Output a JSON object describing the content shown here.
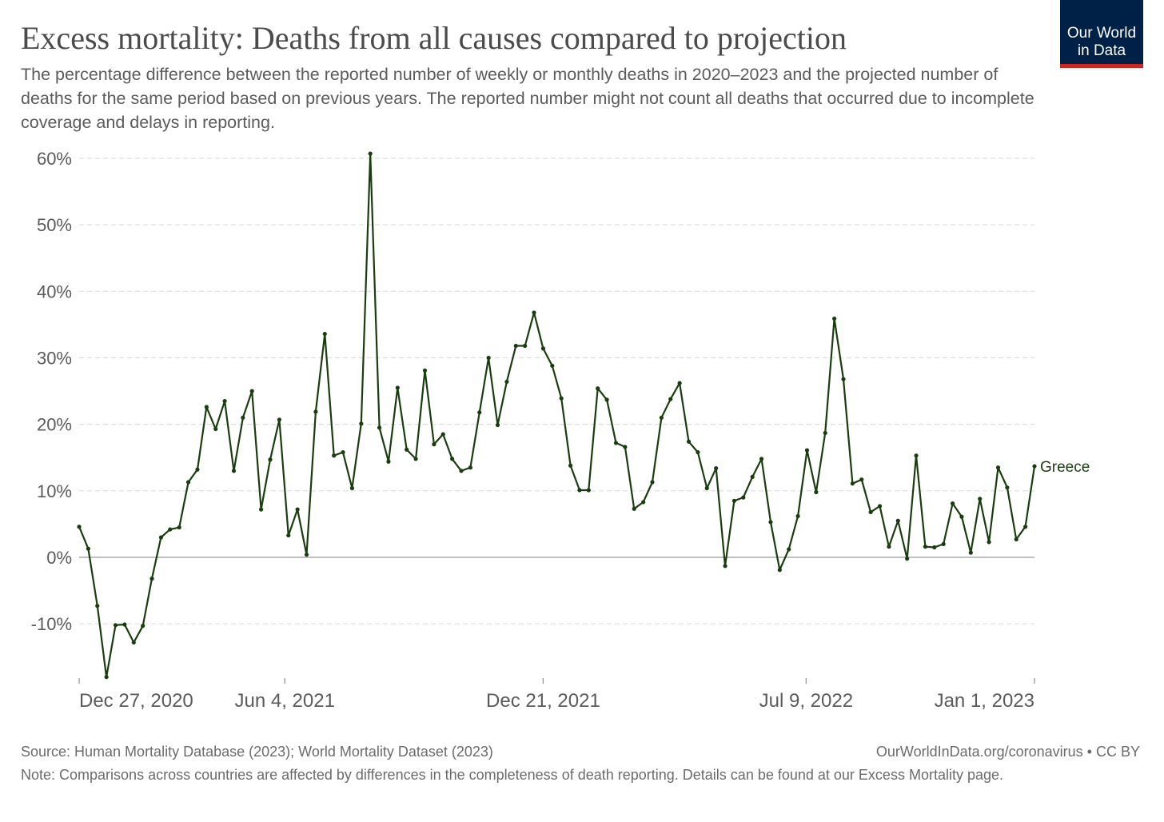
{
  "header": {
    "title": "Excess mortality: Deaths from all causes compared to projection",
    "subtitle": "The percentage difference between the reported number of weekly or monthly deaths in 2020–2023 and the projected number of deaths for the same period based on previous years. The reported number might not count all deaths that occurred due to incomplete coverage and delays in reporting."
  },
  "logo": {
    "line1": "Our World",
    "line2": "in Data"
  },
  "footer": {
    "source": "Source: Human Mortality Database (2023); World Mortality Dataset (2023)",
    "url": "OurWorldInData.org/coronavirus • CC BY",
    "note": "Note: Comparisons across countries are affected by differences in the completeness of death reporting. Details can be found at our Excess Mortality page."
  },
  "colors": {
    "series": "#1a3d0f",
    "grid": "#dddddd",
    "zero": "#999999"
  },
  "chart_data": {
    "type": "line",
    "title": "Excess mortality: Deaths from all causes compared to projection",
    "xlabel": "",
    "ylabel": "",
    "x_unit": "week index from Dec 27, 2020",
    "ylim": [
      -18,
      61
    ],
    "grid": true,
    "yticks": [
      {
        "value": -10,
        "label": "-10%"
      },
      {
        "value": 0,
        "label": "0%"
      },
      {
        "value": 10,
        "label": "10%"
      },
      {
        "value": 20,
        "label": "20%"
      },
      {
        "value": 30,
        "label": "30%"
      },
      {
        "value": 40,
        "label": "40%"
      },
      {
        "value": 50,
        "label": "50%"
      },
      {
        "value": 60,
        "label": "60%"
      }
    ],
    "xticks": [
      {
        "value": 0,
        "label": "Dec 27, 2020"
      },
      {
        "value": 22.6,
        "label": "Jun 4, 2021"
      },
      {
        "value": 51,
        "label": "Dec 21, 2021"
      },
      {
        "value": 79.9,
        "label": "Jul 9, 2022"
      },
      {
        "value": 105,
        "label": "Jan 1, 2023"
      }
    ],
    "series": [
      {
        "name": "Greece",
        "values": [
          4.6,
          1.3,
          -7.3,
          -18,
          -10.2,
          -10.1,
          -12.8,
          -10.3,
          -3.2,
          3.0,
          4.2,
          4.5,
          11.3,
          13.2,
          22.6,
          19.3,
          23.5,
          13.0,
          21.0,
          25.0,
          7.2,
          14.7,
          20.7,
          3.3,
          7.2,
          0.4,
          21.9,
          33.6,
          15.3,
          15.8,
          10.4,
          20.1,
          60.7,
          19.5,
          14.4,
          25.5,
          16.2,
          14.8,
          28.1,
          17.0,
          18.5,
          14.8,
          13.0,
          13.5,
          21.8,
          30.0,
          19.9,
          26.4,
          31.8,
          31.8,
          36.8,
          31.4,
          28.8,
          23.9,
          13.8,
          10.1,
          10.1,
          25.4,
          23.7,
          17.2,
          16.6,
          7.3,
          8.3,
          11.3,
          21.0,
          23.8,
          26.2,
          17.4,
          15.8,
          10.4,
          13.4,
          -1.3,
          8.5,
          9.0,
          12.1,
          14.8,
          5.3,
          -1.9,
          1.2,
          6.2,
          16.1,
          9.8,
          18.7,
          35.9,
          26.8,
          11.1,
          11.7,
          6.8,
          7.7,
          1.6,
          5.5,
          -0.2,
          15.3,
          1.6,
          1.5,
          2.0,
          8.1,
          6.1,
          0.7,
          8.8,
          2.3,
          13.5,
          10.5,
          2.7,
          4.6,
          13.7
        ]
      }
    ]
  }
}
